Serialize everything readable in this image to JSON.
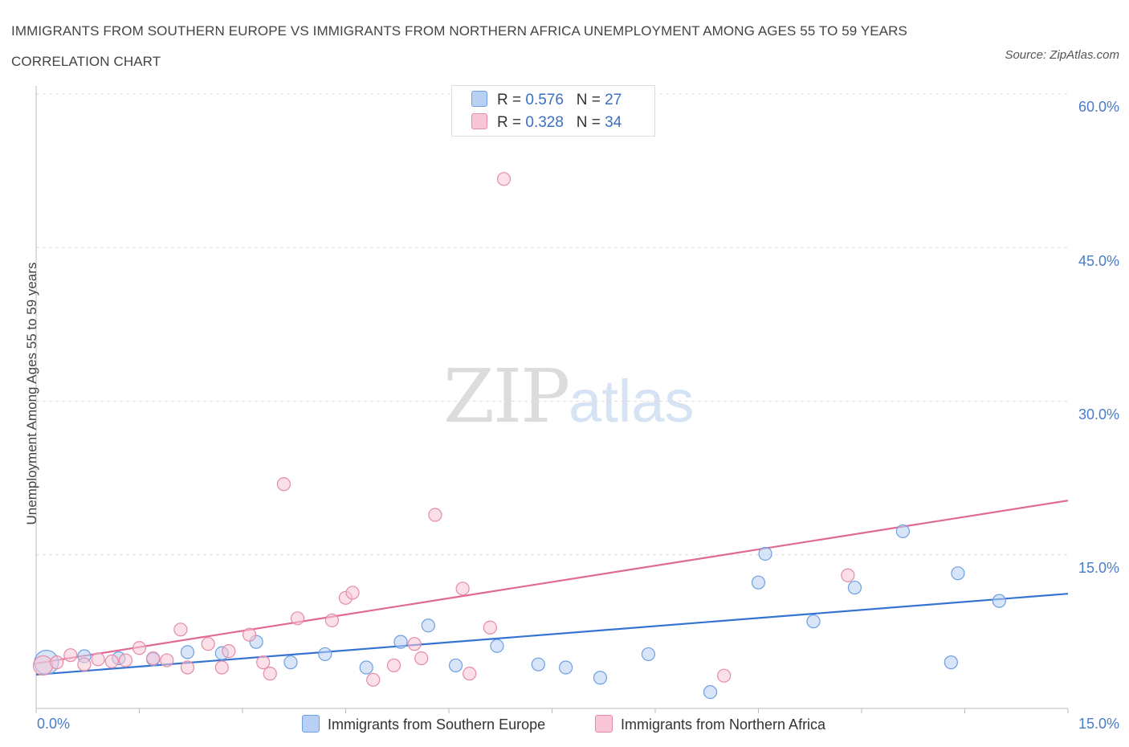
{
  "title": "IMMIGRANTS FROM SOUTHERN EUROPE VS IMMIGRANTS FROM NORTHERN AFRICA UNEMPLOYMENT AMONG AGES 55 TO 59 YEARS CORRELATION CHART",
  "source": "Source: ZipAtlas.com",
  "watermark": {
    "zip": "ZIP",
    "atlas": "atlas"
  },
  "legend_top": {
    "rows": [
      {
        "r_label": "R = ",
        "r_value": "0.576",
        "n_label": "N = ",
        "n_value": "27"
      },
      {
        "r_label": "R = ",
        "r_value": "0.328",
        "n_label": "N = ",
        "n_value": "34"
      }
    ]
  },
  "chart_data": {
    "type": "scatter",
    "title": "IMMIGRANTS FROM SOUTHERN EUROPE VS IMMIGRANTS FROM NORTHERN AFRICA UNEMPLOYMENT AMONG AGES 55 TO 59 YEARS CORRELATION CHART",
    "xlabel": "",
    "ylabel": "Unemployment Among Ages 55 to 59 years",
    "xlim": [
      0,
      15
    ],
    "ylim": [
      0,
      60
    ],
    "x_tick_labels": [
      "0.0%",
      "15.0%"
    ],
    "y_tick_labels": [
      "60.0%",
      "45.0%",
      "30.0%",
      "15.0%"
    ],
    "y_ticks": [
      60,
      45,
      30,
      15
    ],
    "grid": true,
    "legend_position": "bottom",
    "series": [
      {
        "name": "Immigrants from Southern Europe",
        "color": "#6f9fe0",
        "fill": "#b8d0f4",
        "trend": {
          "x": [
            0,
            15
          ],
          "y": [
            3.3,
            11.2
          ],
          "color": "#3573d3"
        },
        "points": [
          [
            0.15,
            4.5
          ],
          [
            0.7,
            5.1
          ],
          [
            1.2,
            4.9
          ],
          [
            1.7,
            4.8
          ],
          [
            2.2,
            5.5
          ],
          [
            2.7,
            5.4
          ],
          [
            3.2,
            6.5
          ],
          [
            3.7,
            4.5
          ],
          [
            4.2,
            5.3
          ],
          [
            4.8,
            4.0
          ],
          [
            5.3,
            6.5
          ],
          [
            5.7,
            8.1
          ],
          [
            6.1,
            4.2
          ],
          [
            6.7,
            6.1
          ],
          [
            7.3,
            4.3
          ],
          [
            7.7,
            4.0
          ],
          [
            8.2,
            3.0
          ],
          [
            8.9,
            5.3
          ],
          [
            9.8,
            1.6
          ],
          [
            10.5,
            12.3
          ],
          [
            10.6,
            15.1
          ],
          [
            11.3,
            8.5
          ],
          [
            11.9,
            11.8
          ],
          [
            12.6,
            17.3
          ],
          [
            13.3,
            4.5
          ],
          [
            13.4,
            13.2
          ],
          [
            14.0,
            10.5
          ]
        ]
      },
      {
        "name": "Immigrants from Northern Africa",
        "color": "#e58aa8",
        "fill": "#f8c6d6",
        "trend": {
          "x": [
            0,
            15
          ],
          "y": [
            4.4,
            20.3
          ],
          "color": "#e06a93"
        },
        "points": [
          [
            0.1,
            4.2
          ],
          [
            0.3,
            4.5
          ],
          [
            0.5,
            5.2
          ],
          [
            0.7,
            4.3
          ],
          [
            0.9,
            4.8
          ],
          [
            1.1,
            4.6
          ],
          [
            1.3,
            4.7
          ],
          [
            1.5,
            5.9
          ],
          [
            1.7,
            4.9
          ],
          [
            1.9,
            4.7
          ],
          [
            2.1,
            7.7
          ],
          [
            2.2,
            4.0
          ],
          [
            2.5,
            6.3
          ],
          [
            2.7,
            4.0
          ],
          [
            2.8,
            5.6
          ],
          [
            3.1,
            7.2
          ],
          [
            3.3,
            4.5
          ],
          [
            3.4,
            3.4
          ],
          [
            3.6,
            21.9
          ],
          [
            3.8,
            8.8
          ],
          [
            4.3,
            8.6
          ],
          [
            4.5,
            10.8
          ],
          [
            4.6,
            11.3
          ],
          [
            4.9,
            2.8
          ],
          [
            5.2,
            4.2
          ],
          [
            5.5,
            6.3
          ],
          [
            5.6,
            4.9
          ],
          [
            5.8,
            18.9
          ],
          [
            6.2,
            11.7
          ],
          [
            6.3,
            3.4
          ],
          [
            6.6,
            7.9
          ],
          [
            6.8,
            51.7
          ],
          [
            10.0,
            3.2
          ],
          [
            11.8,
            13.0
          ]
        ]
      }
    ]
  }
}
